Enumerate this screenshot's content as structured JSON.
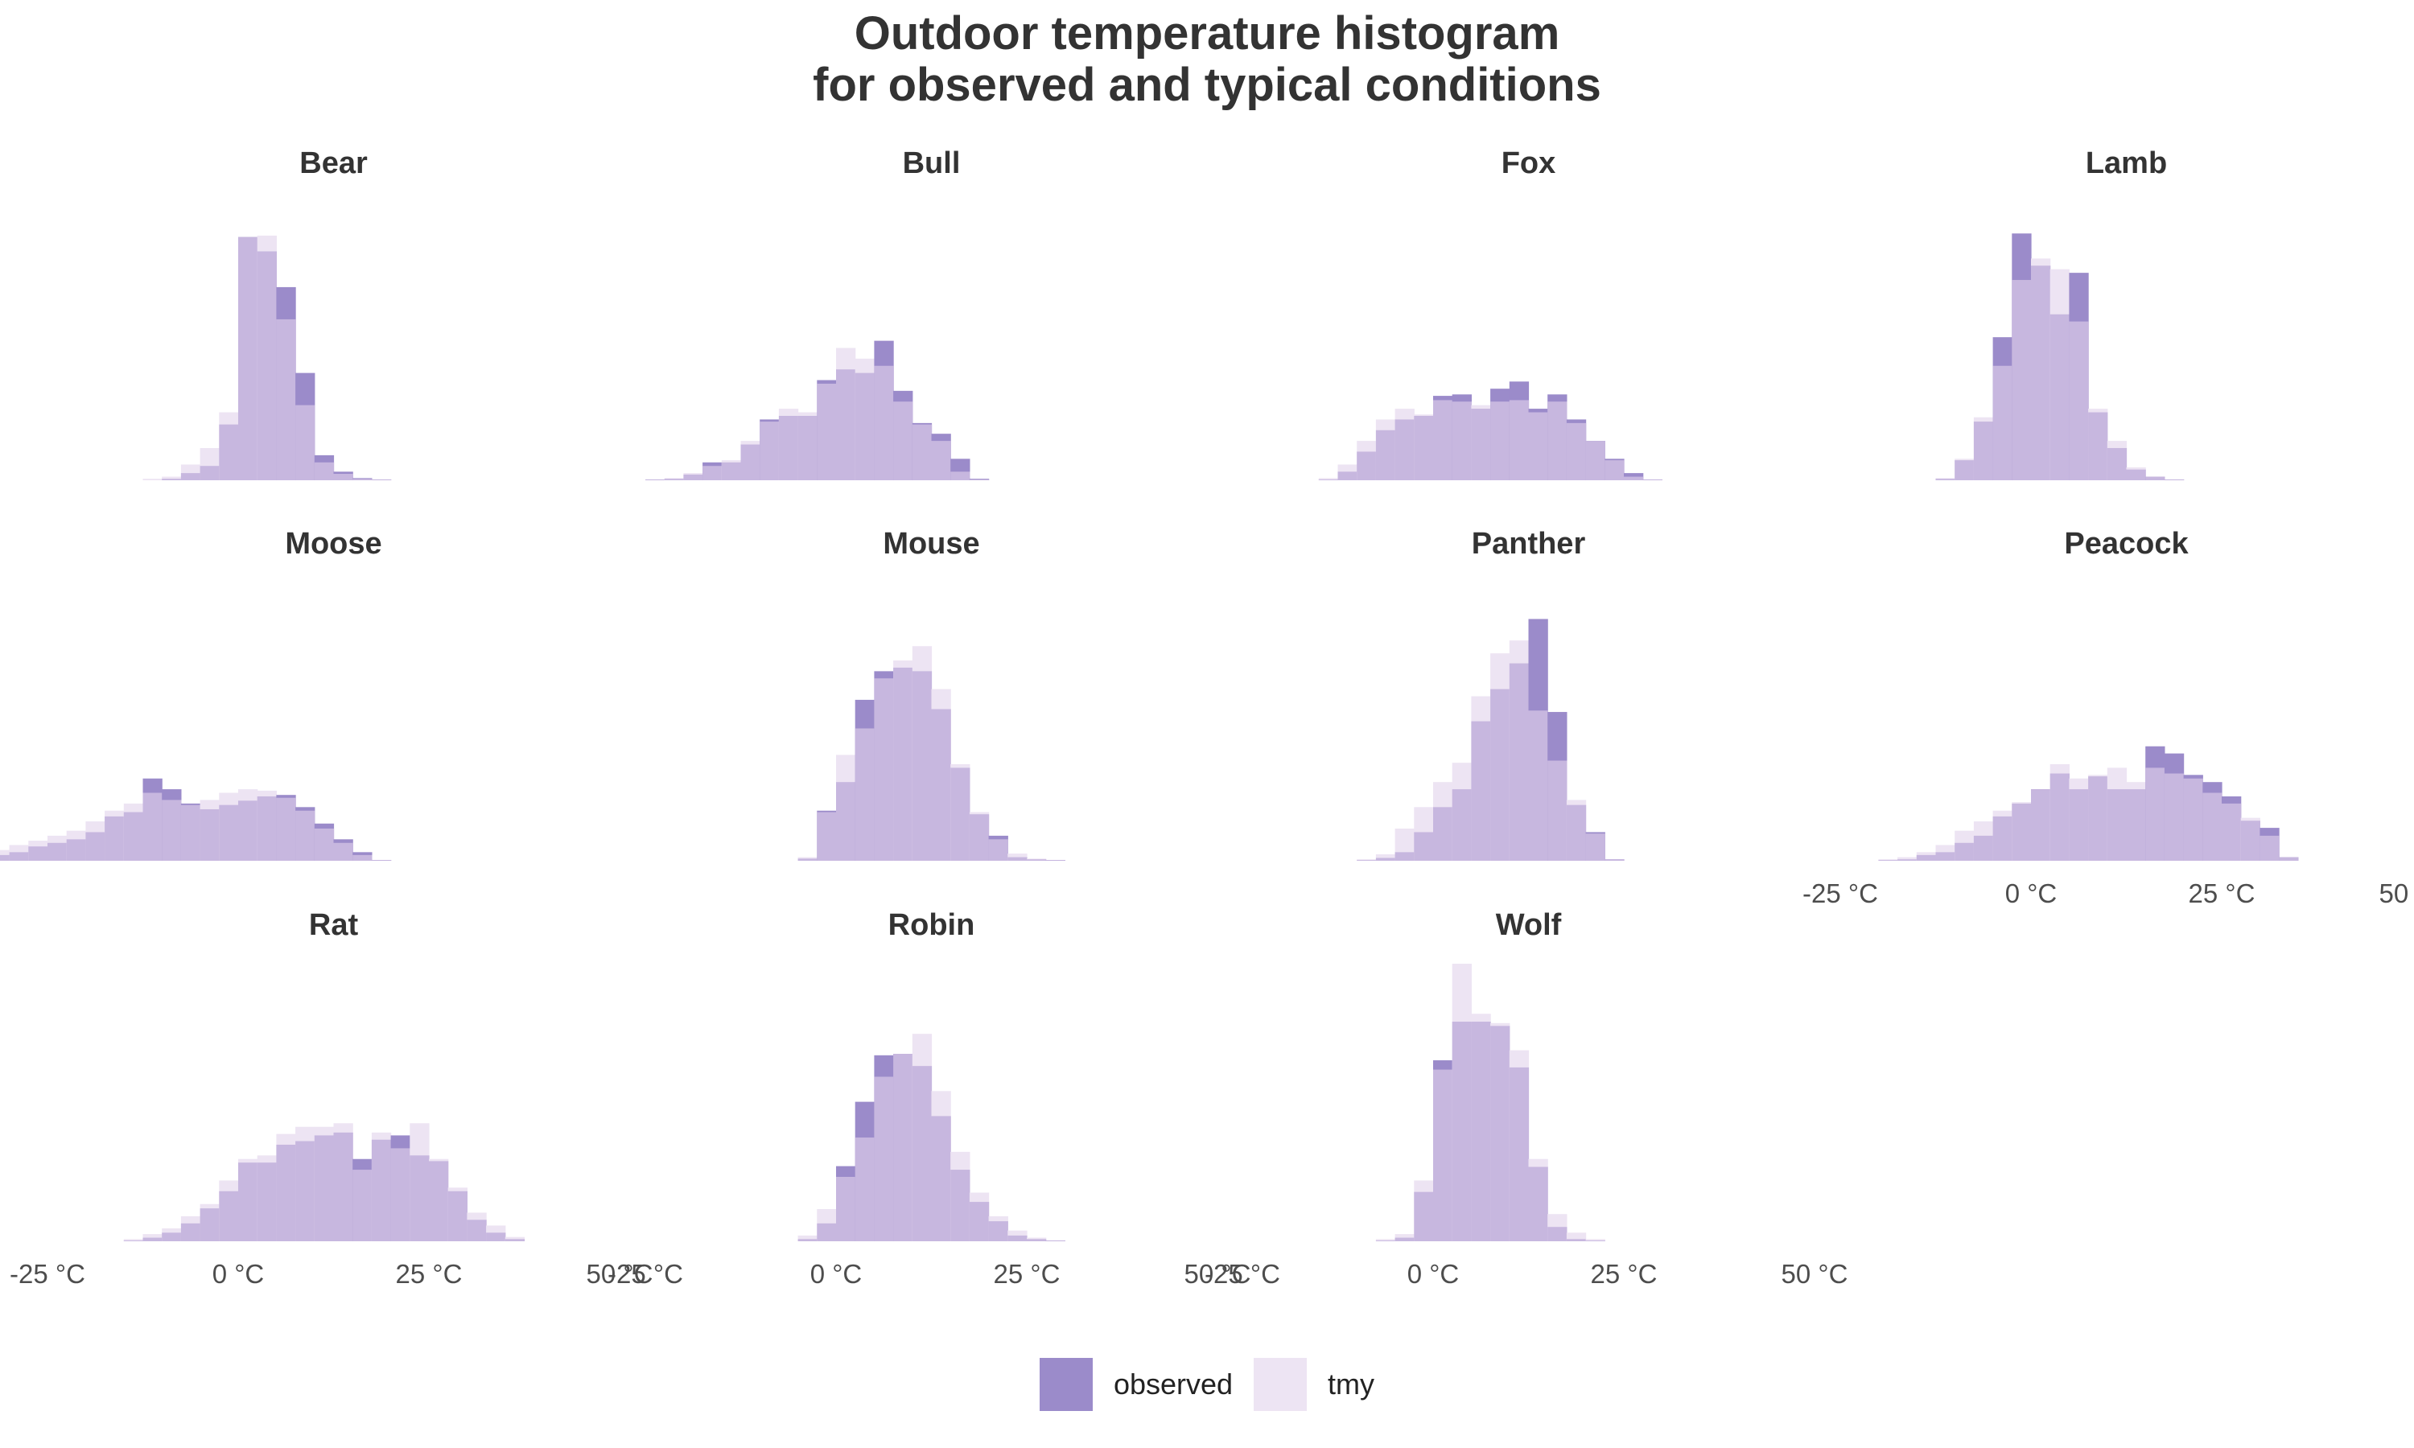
{
  "chart_data": {
    "type": "histogram",
    "title": "Outdoor temperature histogram",
    "subtitle": "for observed and typical conditions",
    "xlim": [
      -25,
      50
    ],
    "x_ticks": [
      "-25 °C",
      "0 °C",
      "25 °C",
      "50 °C"
    ],
    "bin_width": 2.5,
    "series": [
      {
        "name": "observed",
        "color": "#9b8bca"
      },
      {
        "name": "tmy",
        "color": "#ede4f3"
      }
    ],
    "panels": [
      {
        "name": "Bear",
        "bins_start": -12.5,
        "observed": [
          0,
          2,
          10,
          20,
          78,
          340,
          320,
          270,
          150,
          35,
          12,
          3,
          1
        ],
        "tmy": [
          2,
          5,
          22,
          45,
          95,
          340,
          342,
          225,
          105,
          25,
          9,
          2,
          1
        ]
      },
      {
        "name": "Bull",
        "bins_start": -25,
        "observed": [
          1,
          2,
          8,
          25,
          25,
          50,
          85,
          90,
          90,
          140,
          155,
          150,
          195,
          125,
          80,
          65,
          30,
          2
        ],
        "tmy": [
          1,
          3,
          10,
          20,
          28,
          55,
          82,
          100,
          95,
          135,
          185,
          170,
          160,
          110,
          78,
          55,
          12,
          1
        ]
      },
      {
        "name": "Fox",
        "bins_start": -15,
        "observed": [
          1,
          12,
          40,
          70,
          85,
          90,
          118,
          120,
          100,
          128,
          138,
          100,
          120,
          85,
          55,
          30,
          10,
          1
        ],
        "tmy": [
          3,
          22,
          55,
          85,
          100,
          92,
          112,
          110,
          105,
          110,
          112,
          95,
          110,
          80,
          55,
          28,
          5,
          1
        ]
      },
      {
        "name": "Lamb",
        "bins_start": -12.5,
        "observed": [
          2,
          28,
          82,
          200,
          345,
          300,
          232,
          290,
          95,
          45,
          15,
          5,
          1
        ],
        "tmy": [
          3,
          30,
          88,
          160,
          280,
          310,
          295,
          222,
          100,
          55,
          18,
          5,
          1
        ]
      },
      {
        "name": "Moose",
        "bins_start": -37.5,
        "observed": [
          1,
          3,
          8,
          12,
          20,
          25,
          30,
          40,
          62,
          68,
          115,
          100,
          80,
          72,
          78,
          84,
          90,
          92,
          75,
          52,
          30,
          12,
          1
        ],
        "tmy": [
          2,
          6,
          15,
          22,
          28,
          35,
          42,
          55,
          70,
          80,
          95,
          85,
          78,
          85,
          95,
          100,
          98,
          88,
          70,
          45,
          25,
          8,
          1
        ]
      },
      {
        "name": "Mouse",
        "bins_start": -5,
        "observed": [
          3,
          70,
          110,
          225,
          265,
          270,
          265,
          212,
          130,
          65,
          35,
          5,
          2,
          1
        ],
        "tmy": [
          5,
          68,
          148,
          185,
          255,
          280,
          300,
          240,
          135,
          68,
          30,
          10,
          3,
          1
        ]
      },
      {
        "name": "Panther",
        "bins_start": -10,
        "observed": [
          1,
          4,
          12,
          40,
          75,
          100,
          195,
          240,
          276,
          338,
          208,
          78,
          40,
          2
        ],
        "tmy": [
          2,
          9,
          45,
          75,
          110,
          137,
          230,
          290,
          308,
          210,
          140,
          85,
          38,
          2
        ]
      },
      {
        "name": "Peacock",
        "bins_start": -20,
        "observed": [
          1,
          2,
          8,
          12,
          25,
          35,
          62,
          80,
          100,
          122,
          100,
          118,
          100,
          100,
          160,
          150,
          120,
          110,
          90,
          56,
          46,
          5
        ],
        "tmy": [
          2,
          5,
          12,
          22,
          42,
          55,
          70,
          82,
          100,
          135,
          115,
          120,
          130,
          110,
          130,
          122,
          115,
          95,
          80,
          60,
          35,
          5
        ]
      },
      {
        "name": "Rat",
        "bins_start": -15,
        "observed": [
          1,
          5,
          12,
          25,
          46,
          70,
          110,
          110,
          135,
          140,
          148,
          152,
          115,
          142,
          148,
          120,
          112,
          70,
          30,
          12,
          3
        ],
        "tmy": [
          3,
          10,
          18,
          35,
          52,
          85,
          115,
          120,
          150,
          160,
          160,
          165,
          100,
          152,
          130,
          165,
          115,
          75,
          40,
          22,
          6
        ]
      },
      {
        "name": "Robin",
        "bins_start": -5,
        "observed": [
          3,
          25,
          105,
          195,
          260,
          262,
          245,
          175,
          100,
          55,
          28,
          8,
          3,
          1
        ],
        "tmy": [
          8,
          45,
          90,
          145,
          230,
          262,
          290,
          210,
          125,
          68,
          35,
          15,
          5,
          1
        ]
      },
      {
        "name": "Wolf",
        "bins_start": -7.5,
        "observed": [
          1,
          5,
          69,
          253,
          307,
          307,
          301,
          243,
          104,
          20,
          3,
          1
        ],
        "tmy": [
          3,
          10,
          85,
          240,
          388,
          318,
          305,
          267,
          115,
          38,
          12,
          3
        ]
      }
    ]
  },
  "legend": {
    "observed_label": "observed",
    "tmy_label": "tmy"
  }
}
